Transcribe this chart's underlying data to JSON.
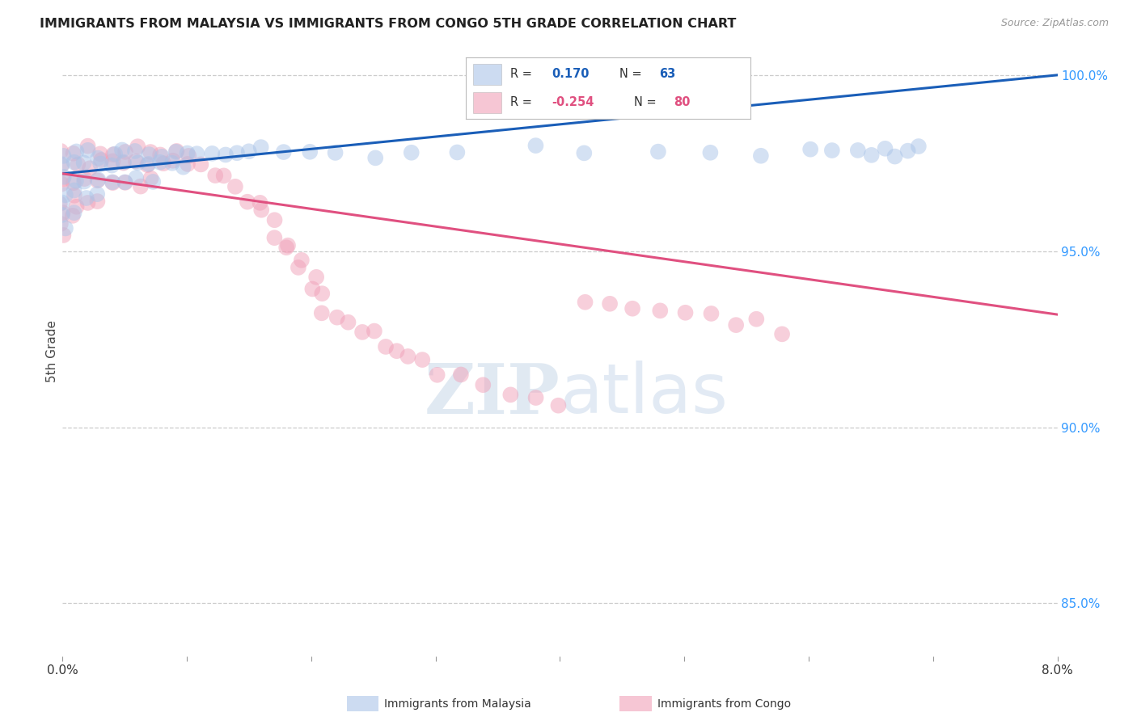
{
  "title": "IMMIGRANTS FROM MALAYSIA VS IMMIGRANTS FROM CONGO 5TH GRADE CORRELATION CHART",
  "source": "Source: ZipAtlas.com",
  "ylabel": "5th Grade",
  "right_yticks": [
    1.0,
    0.95,
    0.9,
    0.85
  ],
  "right_yticklabels": [
    "100.0%",
    "95.0%",
    "90.0%",
    "85.0%"
  ],
  "malaysia_color": "#aac4e8",
  "congo_color": "#f0a0b8",
  "trend_malaysia_color": "#1a5eb8",
  "trend_congo_color": "#e05080",
  "xlim": [
    0.0,
    0.08
  ],
  "ylim": [
    0.835,
    1.008
  ],
  "malaysia_R": "0.170",
  "malaysia_N": "63",
  "congo_R": "-0.254",
  "congo_N": "80",
  "legend_label_malaysia": "Immigrants from Malaysia",
  "legend_label_congo": "Immigrants from Congo",
  "watermark_zip": "ZIP",
  "watermark_atlas": "atlas",
  "background_color": "#ffffff",
  "grid_color": "#cccccc",
  "malaysia_x": [
    0.0,
    0.0,
    0.0,
    0.0,
    0.0,
    0.0,
    0.0,
    0.001,
    0.001,
    0.001,
    0.001,
    0.001,
    0.002,
    0.002,
    0.002,
    0.002,
    0.003,
    0.003,
    0.003,
    0.003,
    0.004,
    0.004,
    0.004,
    0.005,
    0.005,
    0.005,
    0.006,
    0.006,
    0.006,
    0.007,
    0.007,
    0.007,
    0.008,
    0.008,
    0.009,
    0.009,
    0.01,
    0.01,
    0.011,
    0.012,
    0.013,
    0.014,
    0.015,
    0.016,
    0.018,
    0.02,
    0.022,
    0.025,
    0.028,
    0.032,
    0.038,
    0.042,
    0.048,
    0.052,
    0.056,
    0.06,
    0.062,
    0.064,
    0.065,
    0.066,
    0.067,
    0.068,
    0.069
  ],
  "malaysia_y": [
    0.978,
    0.974,
    0.97,
    0.966,
    0.963,
    0.96,
    0.957,
    0.978,
    0.974,
    0.97,
    0.966,
    0.963,
    0.978,
    0.975,
    0.97,
    0.965,
    0.978,
    0.975,
    0.97,
    0.965,
    0.978,
    0.975,
    0.97,
    0.978,
    0.975,
    0.97,
    0.978,
    0.975,
    0.97,
    0.978,
    0.975,
    0.97,
    0.978,
    0.975,
    0.978,
    0.975,
    0.978,
    0.975,
    0.978,
    0.978,
    0.978,
    0.978,
    0.978,
    0.978,
    0.978,
    0.978,
    0.978,
    0.978,
    0.978,
    0.978,
    0.978,
    0.978,
    0.978,
    0.978,
    0.978,
    0.978,
    0.978,
    0.978,
    0.978,
    0.978,
    0.978,
    0.978,
    0.978
  ],
  "congo_x": [
    0.0,
    0.0,
    0.0,
    0.0,
    0.0,
    0.0,
    0.0,
    0.0,
    0.001,
    0.001,
    0.001,
    0.001,
    0.001,
    0.001,
    0.002,
    0.002,
    0.002,
    0.002,
    0.003,
    0.003,
    0.003,
    0.003,
    0.004,
    0.004,
    0.004,
    0.005,
    0.005,
    0.005,
    0.006,
    0.006,
    0.006,
    0.007,
    0.007,
    0.007,
    0.008,
    0.008,
    0.009,
    0.009,
    0.01,
    0.01,
    0.011,
    0.012,
    0.013,
    0.014,
    0.015,
    0.016,
    0.016,
    0.017,
    0.017,
    0.018,
    0.018,
    0.019,
    0.019,
    0.02,
    0.02,
    0.021,
    0.021,
    0.022,
    0.023,
    0.024,
    0.025,
    0.026,
    0.027,
    0.028,
    0.029,
    0.03,
    0.032,
    0.034,
    0.036,
    0.038,
    0.04,
    0.042,
    0.044,
    0.046,
    0.048,
    0.05,
    0.052,
    0.054,
    0.056,
    0.058
  ],
  "congo_y": [
    0.978,
    0.974,
    0.97,
    0.966,
    0.963,
    0.96,
    0.957,
    0.954,
    0.978,
    0.974,
    0.97,
    0.966,
    0.963,
    0.96,
    0.978,
    0.975,
    0.97,
    0.965,
    0.978,
    0.975,
    0.97,
    0.965,
    0.978,
    0.975,
    0.97,
    0.978,
    0.975,
    0.97,
    0.978,
    0.975,
    0.97,
    0.978,
    0.975,
    0.97,
    0.978,
    0.975,
    0.978,
    0.975,
    0.978,
    0.975,
    0.975,
    0.972,
    0.97,
    0.968,
    0.965,
    0.963,
    0.96,
    0.958,
    0.955,
    0.952,
    0.95,
    0.948,
    0.945,
    0.942,
    0.94,
    0.938,
    0.935,
    0.932,
    0.93,
    0.928,
    0.926,
    0.924,
    0.922,
    0.92,
    0.918,
    0.916,
    0.914,
    0.912,
    0.91,
    0.908,
    0.906,
    0.936,
    0.935,
    0.934,
    0.933,
    0.932,
    0.931,
    0.93,
    0.929,
    0.928
  ]
}
